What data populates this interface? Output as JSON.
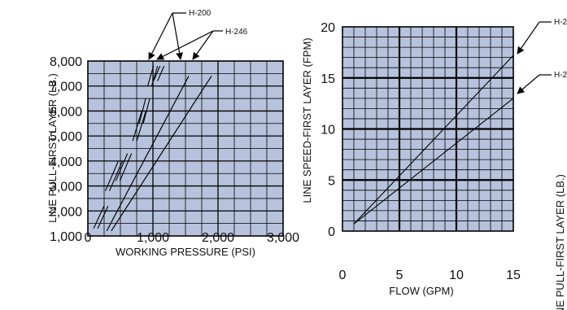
{
  "chart_data": [
    {
      "type": "line",
      "xlabel": "WORKING PRESSURE (PSI)",
      "ylabel": "LINE PULL-FIRST LAYER (LB.)",
      "xlim": [
        0,
        3000
      ],
      "ylim": [
        1000,
        8000
      ],
      "x_ticks": [
        0,
        1000,
        2000,
        3000
      ],
      "x_tick_labels": [
        "0",
        "1,000",
        "2,000",
        "3,000"
      ],
      "y_ticks": [
        1000,
        2000,
        3000,
        4000,
        5000,
        6000,
        7000,
        8000
      ],
      "y_tick_labels": [
        "1,000",
        "2,000",
        "3,000",
        "4,000",
        "5,000",
        "6,000",
        "7,000",
        "8,000"
      ],
      "grid": true,
      "background": "#b7c3dd",
      "callouts": [
        "H-200",
        "H-246"
      ],
      "series": [
        {
          "name": "H-200",
          "x": [
            290,
            1550
          ],
          "y": [
            1200,
            7400
          ]
        },
        {
          "name": "H-246",
          "x": [
            360,
            1900
          ],
          "y": [
            1200,
            7400
          ]
        }
      ],
      "drum_layer_segments": [
        {
          "x": [
            120,
            280
          ],
          "y": [
            1300,
            2200
          ]
        },
        {
          "x": [
            300,
            500
          ],
          "y": [
            2800,
            4000
          ]
        },
        {
          "x": [
            460,
            640
          ],
          "y": [
            3200,
            4300
          ]
        },
        {
          "x": [
            720,
            860
          ],
          "y": [
            4800,
            6000
          ]
        },
        {
          "x": [
            820,
            920
          ],
          "y": [
            5500,
            6500
          ]
        },
        {
          "x": [
            950,
            1040
          ],
          "y": [
            7000,
            7800
          ]
        },
        {
          "x": [
            1040,
            1140
          ],
          "y": [
            7200,
            7800
          ]
        }
      ]
    },
    {
      "type": "line",
      "xlabel": "FLOW (GPM)",
      "ylabel": "LINE SPEED-FIRST LAYER (FPM)",
      "xlim": [
        0,
        15
      ],
      "ylim": [
        0,
        20
      ],
      "x_ticks": [
        0,
        5,
        10,
        15
      ],
      "x_tick_labels": [
        "0",
        "5",
        "10",
        "15"
      ],
      "y_ticks": [
        0,
        5,
        10,
        15,
        20
      ],
      "y_tick_labels": [
        "0",
        "5",
        "10",
        "15",
        "20"
      ],
      "grid": true,
      "background": "#b7c3dd",
      "callouts": [
        "H-2",
        "H-2"
      ],
      "series": [
        {
          "name": "H-2",
          "x": [
            1,
            15
          ],
          "y": [
            0.7,
            17.2
          ]
        },
        {
          "name": "H-2",
          "x": [
            1,
            15
          ],
          "y": [
            0.7,
            13.0
          ]
        }
      ]
    },
    {
      "type": "line",
      "ylabel": "LINE PULL-FIRST LAYER (LB.)"
    }
  ]
}
